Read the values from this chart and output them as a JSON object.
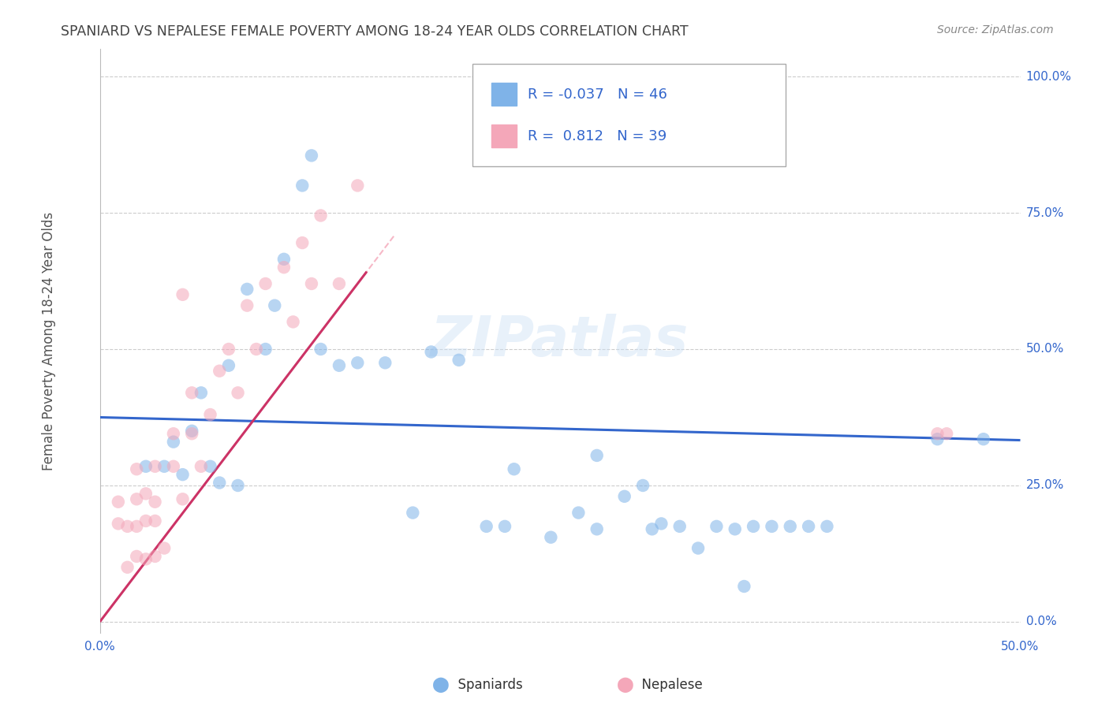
{
  "title": "SPANIARD VS NEPALESE FEMALE POVERTY AMONG 18-24 YEAR OLDS CORRELATION CHART",
  "source": "Source: ZipAtlas.com",
  "ylabel": "Female Poverty Among 18-24 Year Olds",
  "yticks": [
    "0.0%",
    "25.0%",
    "50.0%",
    "75.0%",
    "100.0%"
  ],
  "ytick_vals": [
    0.0,
    0.25,
    0.5,
    0.75,
    1.0
  ],
  "xticks": [
    "0.0%",
    "50.0%"
  ],
  "xtick_vals": [
    0.0,
    0.5
  ],
  "xlim": [
    0.0,
    0.5
  ],
  "ylim": [
    -0.02,
    1.05
  ],
  "watermark": "ZIPatlas",
  "legend_spaniards_label": "Spaniards",
  "legend_nepalese_label": "Nepalese",
  "spaniard_R": "-0.037",
  "spaniard_N": "46",
  "nepalese_R": "0.812",
  "nepalese_N": "39",
  "spaniard_color": "#7fb3e8",
  "nepalese_color": "#f4a7b9",
  "spaniard_line_color": "#3366cc",
  "nepalese_line_color": "#cc3366",
  "label_color": "#3366cc",
  "grid_color": "#cccccc",
  "title_color": "#444444",
  "sp_x": [
    0.025,
    0.035,
    0.04,
    0.045,
    0.05,
    0.055,
    0.06,
    0.065,
    0.07,
    0.075,
    0.08,
    0.09,
    0.095,
    0.1,
    0.11,
    0.115,
    0.12,
    0.13,
    0.14,
    0.155,
    0.17,
    0.18,
    0.195,
    0.21,
    0.22,
    0.225,
    0.245,
    0.26,
    0.27,
    0.285,
    0.295,
    0.305,
    0.315,
    0.325,
    0.335,
    0.345,
    0.355,
    0.365,
    0.375,
    0.385,
    0.395,
    0.27,
    0.3,
    0.35,
    0.455,
    0.48
  ],
  "sp_y": [
    0.285,
    0.285,
    0.33,
    0.27,
    0.35,
    0.42,
    0.285,
    0.255,
    0.47,
    0.25,
    0.61,
    0.5,
    0.58,
    0.665,
    0.8,
    0.855,
    0.5,
    0.47,
    0.475,
    0.475,
    0.2,
    0.495,
    0.48,
    0.175,
    0.175,
    0.28,
    0.155,
    0.2,
    0.305,
    0.23,
    0.25,
    0.18,
    0.175,
    0.135,
    0.175,
    0.17,
    0.175,
    0.175,
    0.175,
    0.175,
    0.175,
    0.17,
    0.17,
    0.065,
    0.335,
    0.335
  ],
  "np_x": [
    0.01,
    0.01,
    0.015,
    0.015,
    0.02,
    0.02,
    0.02,
    0.02,
    0.025,
    0.025,
    0.025,
    0.03,
    0.03,
    0.03,
    0.03,
    0.035,
    0.04,
    0.04,
    0.045,
    0.05,
    0.05,
    0.055,
    0.06,
    0.065,
    0.07,
    0.075,
    0.08,
    0.085,
    0.09,
    0.1,
    0.105,
    0.11,
    0.115,
    0.12,
    0.13,
    0.14,
    0.045,
    0.455,
    0.46
  ],
  "np_y": [
    0.22,
    0.18,
    0.175,
    0.1,
    0.28,
    0.12,
    0.175,
    0.225,
    0.235,
    0.185,
    0.115,
    0.285,
    0.22,
    0.185,
    0.12,
    0.135,
    0.345,
    0.285,
    0.225,
    0.42,
    0.345,
    0.285,
    0.38,
    0.46,
    0.5,
    0.42,
    0.58,
    0.5,
    0.62,
    0.65,
    0.55,
    0.695,
    0.62,
    0.745,
    0.62,
    0.8,
    0.6,
    0.345,
    0.345
  ]
}
